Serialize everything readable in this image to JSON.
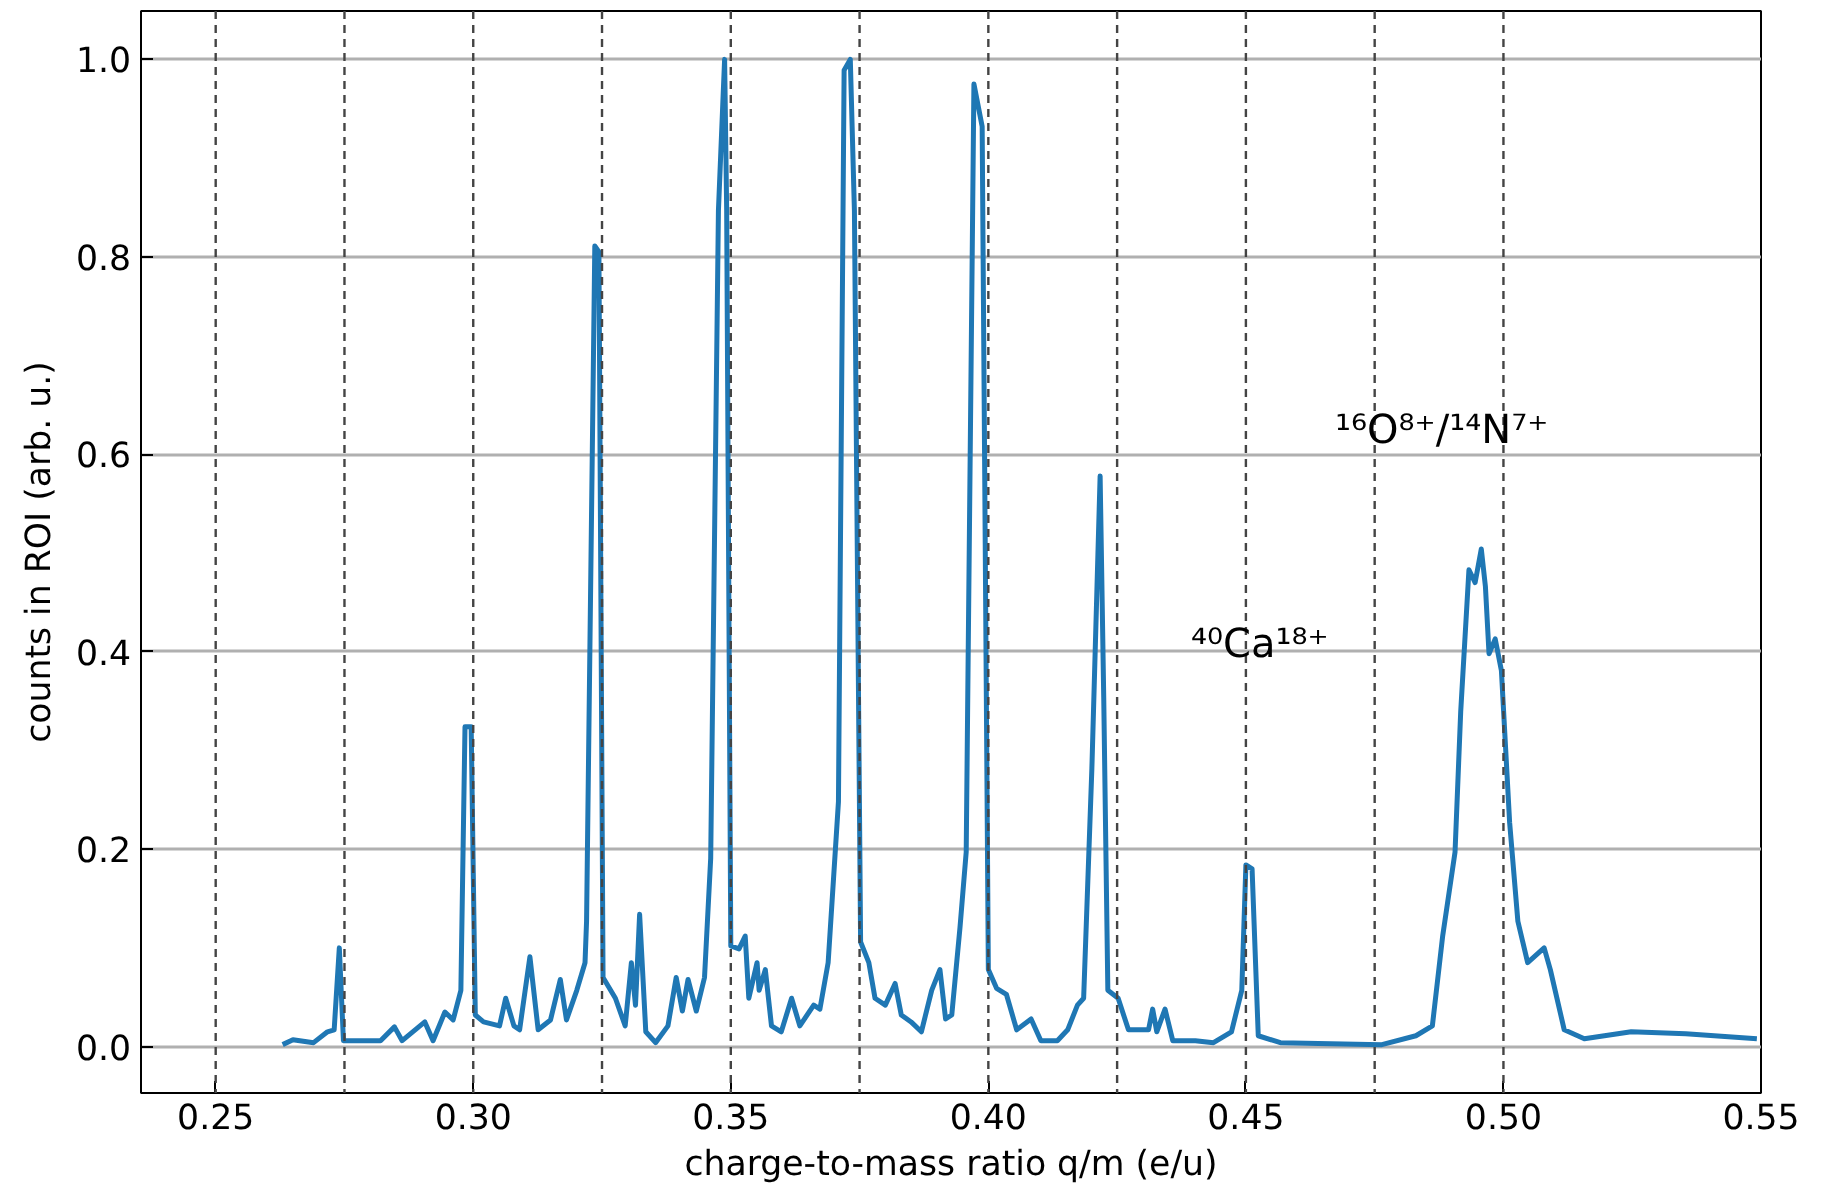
{
  "chart_data": {
    "type": "line",
    "xlabel": "charge-to-mass ratio q/m (e/u)",
    "ylabel": "counts in ROI (arb. u.)",
    "xlim": [
      0.2355,
      0.55
    ],
    "ylim": [
      -0.047,
      1.049
    ],
    "xticks": [
      {
        "value": 0.25,
        "label": "0.25"
      },
      {
        "value": 0.3,
        "label": "0.30"
      },
      {
        "value": 0.35,
        "label": "0.35"
      },
      {
        "value": 0.4,
        "label": "0.40"
      },
      {
        "value": 0.45,
        "label": "0.45"
      },
      {
        "value": 0.5,
        "label": "0.50"
      },
      {
        "value": 0.55,
        "label": "0.55"
      }
    ],
    "yticks": [
      {
        "value": 0,
        "label": "0.0"
      },
      {
        "value": 0.2,
        "label": "0.2"
      },
      {
        "value": 0.4,
        "label": "0.4"
      },
      {
        "value": 0.6,
        "label": "0.6"
      },
      {
        "value": 0.8,
        "label": "0.8"
      },
      {
        "value": 1,
        "label": "1.0"
      }
    ],
    "grid": "y",
    "marker": "none",
    "line_style": "solid",
    "ref_lines": [
      {
        "axis": "x",
        "value": 0.25,
        "color": "#444444",
        "line_style": "dashed"
      },
      {
        "axis": "x",
        "value": 0.275,
        "color": "#444444",
        "line_style": "dashed"
      },
      {
        "axis": "x",
        "value": 0.3,
        "color": "#444444",
        "line_style": "dashed"
      },
      {
        "axis": "x",
        "value": 0.325,
        "color": "#444444",
        "line_style": "dashed"
      },
      {
        "axis": "x",
        "value": 0.35,
        "color": "#444444",
        "line_style": "dashed"
      },
      {
        "axis": "x",
        "value": 0.375,
        "color": "#444444",
        "line_style": "dashed"
      },
      {
        "axis": "x",
        "value": 0.4,
        "color": "#444444",
        "line_style": "dashed"
      },
      {
        "axis": "x",
        "value": 0.425,
        "color": "#444444",
        "line_style": "dashed"
      },
      {
        "axis": "x",
        "value": 0.45,
        "color": "#444444",
        "line_style": "dashed"
      },
      {
        "axis": "x",
        "value": 0.475,
        "color": "#444444",
        "line_style": "dashed"
      },
      {
        "axis": "x",
        "value": 0.5,
        "color": "#444444",
        "line_style": "dashed"
      }
    ],
    "annotations": [
      "⁴⁰Ca¹⁸⁺",
      "¹⁶O⁸⁺/¹⁴N⁷⁺"
    ],
    "series": [
      {
        "color": "#1f77b4",
        "x": [
          0.263,
          0.265,
          0.269,
          0.2717,
          0.273,
          0.274,
          0.2748,
          0.2768,
          0.282,
          0.2847,
          0.2862,
          0.2906,
          0.2922,
          0.2945,
          0.2961,
          0.2976,
          0.2984,
          0.2996,
          0.3004,
          0.302,
          0.3051,
          0.3063,
          0.3079,
          0.309,
          0.311,
          0.3126,
          0.315,
          0.3169,
          0.3181,
          0.3201,
          0.3217,
          0.322,
          0.3236,
          0.3244,
          0.3252,
          0.3276,
          0.3295,
          0.3307,
          0.3315,
          0.3323,
          0.3335,
          0.3354,
          0.3378,
          0.3394,
          0.3406,
          0.3417,
          0.3433,
          0.3449,
          0.3461,
          0.3476,
          0.3488,
          0.3492,
          0.35,
          0.3516,
          0.3528,
          0.3535,
          0.3551,
          0.3555,
          0.3567,
          0.3579,
          0.3598,
          0.3618,
          0.3634,
          0.3661,
          0.3673,
          0.3689,
          0.3709,
          0.372,
          0.3732,
          0.374,
          0.3752,
          0.3768,
          0.378,
          0.38,
          0.3819,
          0.3831,
          0.385,
          0.387,
          0.389,
          0.3906,
          0.3917,
          0.3929,
          0.3945,
          0.3957,
          0.3972,
          0.3988,
          0.4,
          0.4016,
          0.4035,
          0.4055,
          0.4083,
          0.4102,
          0.4134,
          0.4154,
          0.4173,
          0.4185,
          0.4201,
          0.4217,
          0.4224,
          0.4232,
          0.4252,
          0.4272,
          0.4311,
          0.4319,
          0.4327,
          0.4343,
          0.4358,
          0.4402,
          0.4437,
          0.4472,
          0.4492,
          0.45,
          0.4512,
          0.4524,
          0.4567,
          0.4764,
          0.483,
          0.4862,
          0.4882,
          0.4906,
          0.4917,
          0.4933,
          0.4945,
          0.4957,
          0.4965,
          0.4972,
          0.4984,
          0.4996,
          0.5012,
          0.5028,
          0.5047,
          0.5079,
          0.5091,
          0.5118,
          0.5157,
          0.5248,
          0.5354,
          0.5492
        ],
        "values": [
          0.002,
          0.007,
          0.004,
          0.015,
          0.017,
          0.1,
          0.006,
          0.006,
          0.006,
          0.02,
          0.006,
          0.025,
          0.006,
          0.035,
          0.027,
          0.057,
          0.324,
          0.324,
          0.032,
          0.025,
          0.021,
          0.049,
          0.021,
          0.017,
          0.091,
          0.017,
          0.027,
          0.068,
          0.027,
          0.057,
          0.085,
          0.127,
          0.811,
          0.805,
          0.07,
          0.049,
          0.021,
          0.085,
          0.042,
          0.134,
          0.015,
          0.004,
          0.021,
          0.07,
          0.036,
          0.068,
          0.036,
          0.07,
          0.191,
          0.847,
          1.0,
          0.847,
          0.102,
          0.099,
          0.112,
          0.049,
          0.085,
          0.057,
          0.078,
          0.021,
          0.015,
          0.049,
          0.021,
          0.042,
          0.038,
          0.085,
          0.248,
          0.989,
          1.0,
          0.847,
          0.106,
          0.085,
          0.049,
          0.042,
          0.064,
          0.032,
          0.025,
          0.015,
          0.057,
          0.078,
          0.028,
          0.032,
          0.121,
          0.197,
          0.975,
          0.932,
          0.078,
          0.059,
          0.053,
          0.017,
          0.028,
          0.006,
          0.006,
          0.017,
          0.042,
          0.049,
          0.282,
          0.578,
          0.354,
          0.057,
          0.049,
          0.017,
          0.017,
          0.038,
          0.015,
          0.038,
          0.006,
          0.006,
          0.004,
          0.015,
          0.057,
          0.184,
          0.18,
          0.011,
          0.004,
          0.002,
          0.011,
          0.021,
          0.112,
          0.197,
          0.339,
          0.483,
          0.47,
          0.504,
          0.466,
          0.398,
          0.413,
          0.381,
          0.227,
          0.127,
          0.085,
          0.1,
          0.078,
          0.017,
          0.008,
          0.015,
          0.013,
          0.008
        ]
      }
    ]
  }
}
